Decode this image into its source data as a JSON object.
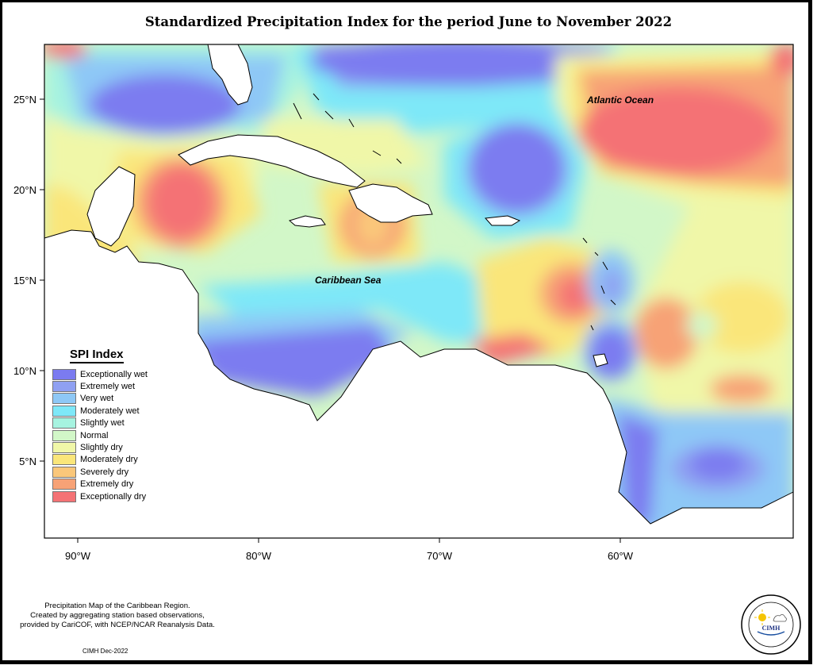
{
  "title": "Standardized Precipitation Index for the period June to November 2022",
  "map": {
    "lat_ticks": [
      "25°N",
      "20°N",
      "15°N",
      "10°N",
      "5°N"
    ],
    "lon_ticks": [
      "90°W",
      "80°W",
      "70°W",
      "60°W"
    ],
    "labels": {
      "atlantic": "Atlantic Ocean",
      "caribbean": "Caribbean Sea"
    }
  },
  "legend": {
    "title": "SPI Index",
    "items": [
      {
        "label": "Exceptionally wet",
        "color": "#7B7BF0"
      },
      {
        "label": "Extremely wet",
        "color": "#8FA0F2"
      },
      {
        "label": "Very wet",
        "color": "#8EC8F6"
      },
      {
        "label": "Moderately wet",
        "color": "#7EE8F8"
      },
      {
        "label": "Slightly wet",
        "color": "#A6F3E0"
      },
      {
        "label": "Normal",
        "color": "#D2F7C8"
      },
      {
        "label": "Slightly dry",
        "color": "#F0F7A8"
      },
      {
        "label": "Moderately dry",
        "color": "#FAE67A"
      },
      {
        "label": "Severely dry",
        "color": "#FAC77A"
      },
      {
        "label": "Extremely dry",
        "color": "#F7A276"
      },
      {
        "label": "Exceptionally dry",
        "color": "#F47275"
      }
    ]
  },
  "footnote": {
    "line1": "Precipitation Map of the Caribbean Region.",
    "line2": "Created by aggregating station based observations,",
    "line3": "provided by CariCOF, with NCEP/NCAR Reanalysis Data."
  },
  "credit": "CIMH Dec-2022",
  "logo": {
    "text": "CIMH"
  }
}
